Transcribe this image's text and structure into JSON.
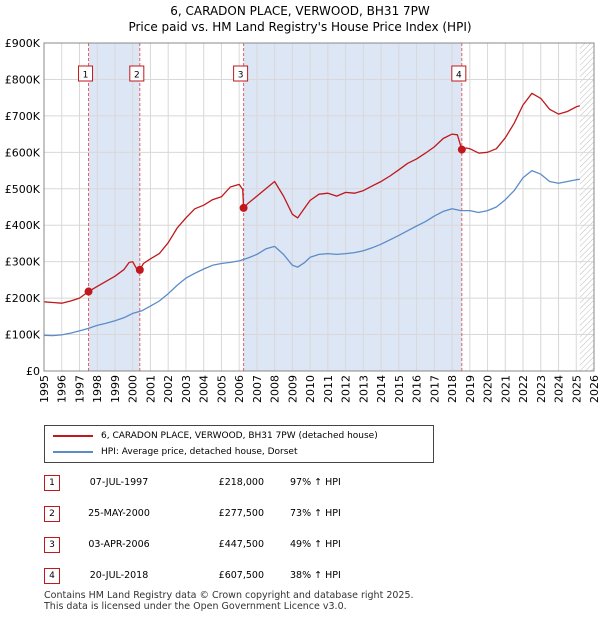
{
  "title": "6, CARADON PLACE, VERWOOD, BH31 7PW",
  "subtitle": "Price paid vs. HM Land Registry's House Price Index (HPI)",
  "colors": {
    "property": "#c0181c",
    "hpi": "#5b8cc8",
    "shade": "#dde6f5",
    "grid": "#d8d8d8"
  },
  "chart_data": {
    "type": "line",
    "xlim": [
      1995,
      2026
    ],
    "ylim": [
      0,
      900000
    ],
    "yticks": [
      0,
      100000,
      200000,
      300000,
      400000,
      500000,
      600000,
      700000,
      800000,
      900000
    ],
    "ytick_labels": [
      "£0",
      "£100K",
      "£200K",
      "£300K",
      "£400K",
      "£500K",
      "£600K",
      "£700K",
      "£800K",
      "£900K"
    ],
    "xtick_labels": [
      "1995",
      "1996",
      "1997",
      "1998",
      "1999",
      "2000",
      "2001",
      "2002",
      "2003",
      "2004",
      "2005",
      "2006",
      "2007",
      "2008",
      "2009",
      "2010",
      "2011",
      "2012",
      "2013",
      "2014",
      "2015",
      "2016",
      "2017",
      "2018",
      "2019",
      "2020",
      "2021",
      "2022",
      "2023",
      "2024",
      "2025",
      "2026"
    ],
    "data_end": 2025.2,
    "series": [
      {
        "name": "6, CARADON PLACE, VERWOOD, BH31 7PW (detached house)",
        "color": "#c0181c",
        "points": [
          [
            1995.0,
            190000
          ],
          [
            1995.5,
            188000
          ],
          [
            1996.0,
            186000
          ],
          [
            1996.5,
            192000
          ],
          [
            1997.0,
            200000
          ],
          [
            1997.51,
            218000
          ],
          [
            1998.0,
            232000
          ],
          [
            1998.5,
            246000
          ],
          [
            1999.0,
            260000
          ],
          [
            1999.5,
            278000
          ],
          [
            1999.8,
            298000
          ],
          [
            2000.0,
            300000
          ],
          [
            2000.2,
            282000
          ],
          [
            2000.4,
            277500
          ],
          [
            2000.6,
            295000
          ],
          [
            2001.0,
            308000
          ],
          [
            2001.5,
            322000
          ],
          [
            2002.0,
            352000
          ],
          [
            2002.5,
            392000
          ],
          [
            2003.0,
            420000
          ],
          [
            2003.5,
            445000
          ],
          [
            2004.0,
            455000
          ],
          [
            2004.5,
            470000
          ],
          [
            2005.0,
            478000
          ],
          [
            2005.5,
            505000
          ],
          [
            2006.0,
            512000
          ],
          [
            2006.2,
            498000
          ],
          [
            2006.25,
            447500
          ],
          [
            2006.5,
            460000
          ],
          [
            2007.0,
            480000
          ],
          [
            2007.5,
            500000
          ],
          [
            2008.0,
            520000
          ],
          [
            2008.5,
            480000
          ],
          [
            2009.0,
            430000
          ],
          [
            2009.3,
            420000
          ],
          [
            2009.7,
            448000
          ],
          [
            2010.0,
            468000
          ],
          [
            2010.5,
            485000
          ],
          [
            2011.0,
            488000
          ],
          [
            2011.5,
            480000
          ],
          [
            2012.0,
            490000
          ],
          [
            2012.5,
            488000
          ],
          [
            2013.0,
            495000
          ],
          [
            2013.5,
            508000
          ],
          [
            2014.0,
            520000
          ],
          [
            2014.5,
            535000
          ],
          [
            2015.0,
            552000
          ],
          [
            2015.5,
            570000
          ],
          [
            2016.0,
            582000
          ],
          [
            2016.5,
            598000
          ],
          [
            2017.0,
            615000
          ],
          [
            2017.5,
            638000
          ],
          [
            2018.0,
            650000
          ],
          [
            2018.3,
            648000
          ],
          [
            2018.55,
            607500
          ],
          [
            2018.8,
            612000
          ],
          [
            2019.0,
            610000
          ],
          [
            2019.5,
            598000
          ],
          [
            2020.0,
            600000
          ],
          [
            2020.5,
            610000
          ],
          [
            2021.0,
            640000
          ],
          [
            2021.5,
            680000
          ],
          [
            2022.0,
            730000
          ],
          [
            2022.5,
            762000
          ],
          [
            2023.0,
            748000
          ],
          [
            2023.5,
            718000
          ],
          [
            2024.0,
            705000
          ],
          [
            2024.5,
            712000
          ],
          [
            2025.0,
            725000
          ],
          [
            2025.2,
            728000
          ]
        ]
      },
      {
        "name": "HPI: Average price, detached house, Dorset",
        "color": "#5b8cc8",
        "points": [
          [
            1995.0,
            98000
          ],
          [
            1995.5,
            97000
          ],
          [
            1996.0,
            99000
          ],
          [
            1996.5,
            104000
          ],
          [
            1997.0,
            110000
          ],
          [
            1997.5,
            117000
          ],
          [
            1998.0,
            125000
          ],
          [
            1998.5,
            131000
          ],
          [
            1999.0,
            138000
          ],
          [
            1999.5,
            146000
          ],
          [
            2000.0,
            158000
          ],
          [
            2000.5,
            165000
          ],
          [
            2001.0,
            178000
          ],
          [
            2001.5,
            192000
          ],
          [
            2002.0,
            212000
          ],
          [
            2002.5,
            235000
          ],
          [
            2003.0,
            255000
          ],
          [
            2003.5,
            268000
          ],
          [
            2004.0,
            280000
          ],
          [
            2004.5,
            290000
          ],
          [
            2005.0,
            295000
          ],
          [
            2005.5,
            298000
          ],
          [
            2006.0,
            302000
          ],
          [
            2006.5,
            310000
          ],
          [
            2007.0,
            320000
          ],
          [
            2007.5,
            335000
          ],
          [
            2008.0,
            342000
          ],
          [
            2008.5,
            320000
          ],
          [
            2009.0,
            290000
          ],
          [
            2009.3,
            285000
          ],
          [
            2009.7,
            298000
          ],
          [
            2010.0,
            312000
          ],
          [
            2010.5,
            320000
          ],
          [
            2011.0,
            322000
          ],
          [
            2011.5,
            320000
          ],
          [
            2012.0,
            322000
          ],
          [
            2012.5,
            325000
          ],
          [
            2013.0,
            330000
          ],
          [
            2013.5,
            338000
          ],
          [
            2014.0,
            348000
          ],
          [
            2014.5,
            360000
          ],
          [
            2015.0,
            372000
          ],
          [
            2015.5,
            385000
          ],
          [
            2016.0,
            398000
          ],
          [
            2016.5,
            410000
          ],
          [
            2017.0,
            425000
          ],
          [
            2017.5,
            438000
          ],
          [
            2018.0,
            445000
          ],
          [
            2018.5,
            440000
          ],
          [
            2019.0,
            440000
          ],
          [
            2019.5,
            435000
          ],
          [
            2020.0,
            440000
          ],
          [
            2020.5,
            450000
          ],
          [
            2021.0,
            470000
          ],
          [
            2021.5,
            495000
          ],
          [
            2022.0,
            530000
          ],
          [
            2022.5,
            550000
          ],
          [
            2023.0,
            540000
          ],
          [
            2023.5,
            520000
          ],
          [
            2024.0,
            515000
          ],
          [
            2024.5,
            520000
          ],
          [
            2025.0,
            525000
          ],
          [
            2025.2,
            526000
          ]
        ]
      }
    ],
    "sales": [
      {
        "label": "1",
        "x": 1997.51,
        "price": 218000
      },
      {
        "label": "2",
        "x": 2000.4,
        "price": 277500
      },
      {
        "label": "3",
        "x": 2006.25,
        "price": 447500
      },
      {
        "label": "4",
        "x": 2018.55,
        "price": 607500
      }
    ]
  },
  "legend": {
    "property_label": "6, CARADON PLACE, VERWOOD, BH31 7PW (detached house)",
    "hpi_label": "HPI: Average price, detached house, Dorset"
  },
  "transactions": [
    {
      "num": "1",
      "date": "07-JUL-1997",
      "price": "£218,000",
      "hpi": "97% ↑ HPI"
    },
    {
      "num": "2",
      "date": "25-MAY-2000",
      "price": "£277,500",
      "hpi": "73% ↑ HPI"
    },
    {
      "num": "3",
      "date": "03-APR-2006",
      "price": "£447,500",
      "hpi": "49% ↑ HPI"
    },
    {
      "num": "4",
      "date": "20-JUL-2018",
      "price": "£607,500",
      "hpi": "38% ↑ HPI"
    }
  ],
  "footer": {
    "line1": "Contains HM Land Registry data © Crown copyright and database right 2025.",
    "line2": "This data is licensed under the Open Government Licence v3.0."
  }
}
